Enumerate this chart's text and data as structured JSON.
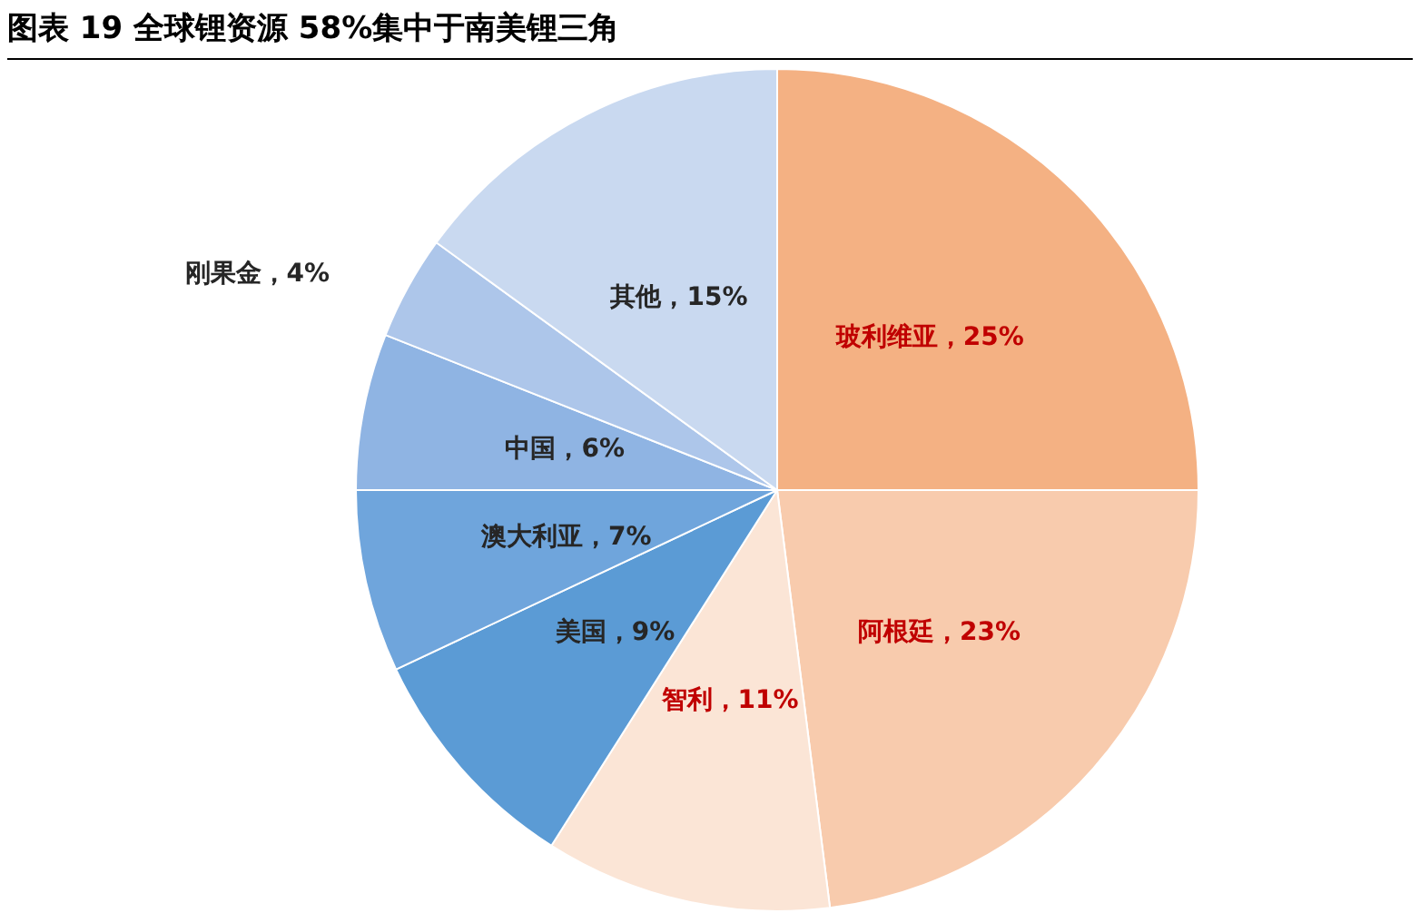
{
  "chart_data": {
    "type": "pie",
    "title": "图表 19 全球锂资源 58%集中于南美锂三角",
    "categories": [
      "玻利维亚",
      "阿根廷",
      "智利",
      "美国",
      "澳大利亚",
      "中国",
      "刚果金",
      "其他"
    ],
    "values": [
      25,
      23,
      11,
      9,
      7,
      6,
      4,
      15
    ],
    "colors": [
      "#f4b183",
      "#f8cbad",
      "#fbe5d6",
      "#5b9bd5",
      "#6fa5dc",
      "#8fb4e3",
      "#adc6ea",
      "#c9d9f0"
    ],
    "value_labels": [
      "25%",
      "23%",
      "11%",
      "9%",
      "7%",
      "6%",
      "4%",
      "15%"
    ],
    "legend": false
  }
}
